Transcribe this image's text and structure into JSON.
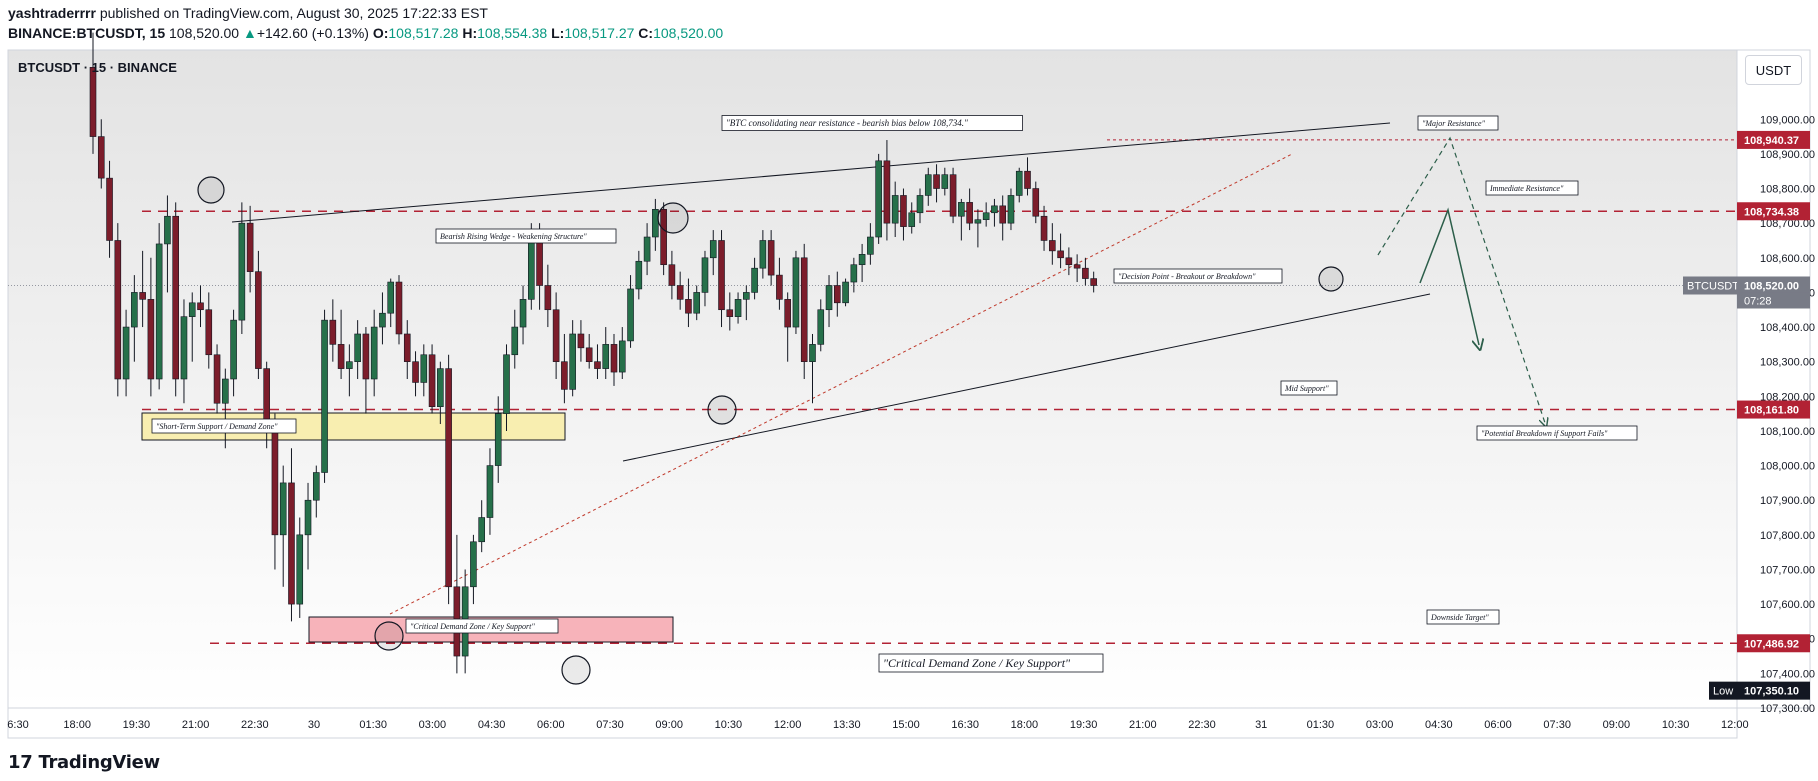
{
  "header": {
    "publisher": "yashtraderrrr",
    "published_text": "published on TradingView.com, August 30, 2025 17:22:33 EST",
    "symbol": "BINANCE:BTCUSDT, 15",
    "price": "108,520.00",
    "change": "+142.60 (+0.13%)",
    "o_label": "O:",
    "o_value": "108,517.28",
    "h_label": "H:",
    "h_value": "108,554.38",
    "l_label": "L:",
    "l_value": "108,517.27",
    "c_label": "C:",
    "c_value": "108,520.00"
  },
  "chart_title": "BTCUSDT · 15 · BINANCE",
  "currency_button": "USDT",
  "footer": {
    "logo_mark": "17",
    "logo_text": "TradingView"
  },
  "colors": {
    "bull": "#26704a",
    "bear": "#7c1d2b",
    "resistance": "#b22234",
    "yellow_zone": "#f8eeb0",
    "pink_zone": "#f7b3ba"
  },
  "chart_data": {
    "type": "candlestick",
    "symbol": "BTCUSDT",
    "interval": "15",
    "ylim": [
      107300,
      109200
    ],
    "y_ticks": [
      107300,
      107400,
      107500,
      107600,
      107700,
      107800,
      107900,
      108000,
      108100,
      108200,
      108300,
      108400,
      108500,
      108600,
      108700,
      108800,
      108900,
      109000
    ],
    "y_tick_labels": [
      "107,300.00",
      "107,400.00",
      "107,500.00",
      "107,600.00",
      "107,700.00",
      "107,800.00",
      "107,900.00",
      "108,000.00",
      "108,100.00",
      "108,200.00",
      "108,300.00",
      "108,400.00",
      "108,500.00",
      "108,600.00",
      "108,700.00",
      "108,800.00",
      "108,900.00",
      "109,000.00"
    ],
    "x_ticks": [
      "6:30",
      "18:00",
      "19:30",
      "21:00",
      "22:30",
      "30",
      "01:30",
      "03:00",
      "04:30",
      "06:00",
      "07:30",
      "09:00",
      "10:30",
      "12:00",
      "13:30",
      "15:00",
      "16:30",
      "18:00",
      "19:30",
      "21:00",
      "22:30",
      "31",
      "01:30",
      "03:00",
      "04:30",
      "06:00",
      "07:30",
      "09:00",
      "10:30",
      "12:00"
    ],
    "price_labels": [
      {
        "text": "108,940.37",
        "value": 108940.37,
        "color": "#b22234"
      },
      {
        "text": "108,734.38",
        "value": 108734.38,
        "color": "#b22234"
      },
      {
        "text": "BTCUSDT",
        "value": 108520,
        "color": "#787b86"
      },
      {
        "text": "108,520.00",
        "value": 108520,
        "color": "#787b86"
      },
      {
        "text": "07:28",
        "value": 108520,
        "color": "#787b86"
      },
      {
        "text": "108,161.80",
        "value": 108161.8,
        "color": "#b22234"
      },
      {
        "text": "107,486.92",
        "value": 107486.92,
        "color": "#b22234"
      },
      {
        "text": "Low",
        "value": 107350.1,
        "color": "#131722"
      },
      {
        "text": "107,350.10",
        "value": 107350.1,
        "color": "#131722"
      }
    ],
    "levels": [
      {
        "name": "Major Resistance",
        "value": 108940.37,
        "style": "dotted"
      },
      {
        "name": "Immediate Resistance",
        "value": 108734.38,
        "style": "dashed"
      },
      {
        "name": "Mid Support",
        "value": 108161.8,
        "style": "dashed"
      },
      {
        "name": "Downside Target",
        "value": 107486.92,
        "style": "dashed"
      }
    ],
    "annotations": [
      "\"BTC consolidating near resistance - bearish bias below 108,734.\"",
      "Bearish Rising Wedge - Weakening Structure\"",
      "\"Decision Point - Breakout or Breakdown\"",
      "\"Major Resistance\"",
      "Immediate Resistance\"",
      "Mid Support\"",
      "\"Potential Breakdown if Support Fails\"",
      "Downside Target\"",
      "\"Short-Term Support / Demand Zone\"",
      "\"Critical Demand Zone / Key Support\"",
      "\"Critical Demand Zone / Key Support\""
    ],
    "candles": [
      [
        109150,
        109250,
        108900,
        108950
      ],
      [
        108950,
        109000,
        108800,
        108830
      ],
      [
        108830,
        108880,
        108600,
        108650
      ],
      [
        108650,
        108700,
        108200,
        108250
      ],
      [
        108250,
        108450,
        108200,
        108400
      ],
      [
        108400,
        108550,
        108300,
        108500
      ],
      [
        108500,
        108620,
        108400,
        108480
      ],
      [
        108480,
        108600,
        108200,
        108250
      ],
      [
        108250,
        108700,
        108220,
        108640
      ],
      [
        108640,
        108780,
        108500,
        108720
      ],
      [
        108720,
        108760,
        108200,
        108250
      ],
      [
        108250,
        108480,
        108180,
        108430
      ],
      [
        108430,
        108500,
        108300,
        108470
      ],
      [
        108470,
        108520,
        108400,
        108450
      ],
      [
        108450,
        108500,
        108280,
        108320
      ],
      [
        108320,
        108350,
        108150,
        108180
      ],
      [
        108180,
        108280,
        108050,
        108250
      ],
      [
        108250,
        108450,
        108200,
        108420
      ],
      [
        108420,
        108760,
        108380,
        108700
      ],
      [
        108700,
        108750,
        108500,
        108560
      ],
      [
        108560,
        108620,
        108250,
        108280
      ],
      [
        108280,
        108300,
        108050,
        108100
      ],
      [
        108100,
        108150,
        107700,
        107800
      ],
      [
        107800,
        108000,
        107650,
        107950
      ],
      [
        107950,
        108050,
        107550,
        107600
      ],
      [
        107600,
        107850,
        107560,
        107800
      ],
      [
        107800,
        107950,
        107700,
        107900
      ],
      [
        107900,
        108000,
        107850,
        107980
      ],
      [
        107980,
        108450,
        107950,
        108420
      ],
      [
        108420,
        108480,
        108300,
        108350
      ],
      [
        108350,
        108450,
        108250,
        108280
      ],
      [
        108280,
        108350,
        108200,
        108300
      ],
      [
        108300,
        108420,
        108250,
        108380
      ],
      [
        108380,
        108400,
        108150,
        108250
      ],
      [
        108250,
        108450,
        108200,
        108400
      ],
      [
        108400,
        108500,
        108350,
        108440
      ],
      [
        108440,
        108540,
        108400,
        108530
      ],
      [
        108530,
        108550,
        108350,
        108380
      ],
      [
        108380,
        108420,
        108250,
        108300
      ],
      [
        108300,
        108330,
        108200,
        108240
      ],
      [
        108240,
        108350,
        108200,
        108320
      ],
      [
        108320,
        108350,
        108150,
        108170
      ],
      [
        108170,
        108300,
        108120,
        108280
      ],
      [
        108280,
        108320,
        107600,
        107650
      ],
      [
        107650,
        107800,
        107400,
        107450
      ],
      [
        107450,
        107700,
        107400,
        107650
      ],
      [
        107650,
        107800,
        107600,
        107780
      ],
      [
        107780,
        107900,
        107750,
        107850
      ],
      [
        107850,
        108050,
        107800,
        108000
      ],
      [
        108000,
        108200,
        107950,
        108150
      ],
      [
        108150,
        108350,
        108100,
        108320
      ],
      [
        108320,
        108450,
        108280,
        108400
      ],
      [
        108400,
        108520,
        108350,
        108480
      ],
      [
        108480,
        108700,
        108450,
        108670
      ],
      [
        108670,
        108700,
        108450,
        108520
      ],
      [
        108520,
        108580,
        108400,
        108450
      ],
      [
        108450,
        108500,
        108250,
        108300
      ],
      [
        108300,
        108380,
        108180,
        108220
      ],
      [
        108220,
        108420,
        108200,
        108380
      ],
      [
        108380,
        108420,
        108300,
        108340
      ],
      [
        108340,
        108380,
        108280,
        108300
      ],
      [
        108300,
        108350,
        108250,
        108280
      ],
      [
        108280,
        108400,
        108250,
        108350
      ],
      [
        108350,
        108380,
        108230,
        108270
      ],
      [
        108270,
        108400,
        108250,
        108360
      ],
      [
        108360,
        108550,
        108340,
        108510
      ],
      [
        108510,
        108620,
        108480,
        108590
      ],
      [
        108590,
        108700,
        108550,
        108660
      ],
      [
        108660,
        108770,
        108620,
        108740
      ],
      [
        108740,
        108760,
        108550,
        108580
      ],
      [
        108580,
        108620,
        108480,
        108520
      ],
      [
        108520,
        108560,
        108450,
        108480
      ],
      [
        108480,
        108540,
        108400,
        108440
      ],
      [
        108440,
        108520,
        108420,
        108500
      ],
      [
        108500,
        108620,
        108460,
        108600
      ],
      [
        108600,
        108680,
        108550,
        108650
      ],
      [
        108650,
        108680,
        108400,
        108450
      ],
      [
        108450,
        108500,
        108390,
        108430
      ],
      [
        108430,
        108500,
        108410,
        108480
      ],
      [
        108480,
        108520,
        108420,
        108500
      ],
      [
        108500,
        108600,
        108480,
        108570
      ],
      [
        108570,
        108680,
        108540,
        108650
      ],
      [
        108650,
        108680,
        108520,
        108550
      ],
      [
        108550,
        108600,
        108450,
        108480
      ],
      [
        108480,
        108500,
        108300,
        108400
      ],
      [
        108400,
        108620,
        108380,
        108600
      ],
      [
        108600,
        108640,
        108250,
        108300
      ],
      [
        108300,
        108380,
        108180,
        108350
      ],
      [
        108350,
        108480,
        108330,
        108450
      ],
      [
        108450,
        108550,
        108400,
        108520
      ],
      [
        108520,
        108560,
        108430,
        108470
      ],
      [
        108470,
        108540,
        108460,
        108530
      ],
      [
        108530,
        108600,
        108500,
        108580
      ],
      [
        108580,
        108640,
        108530,
        108610
      ],
      [
        108610,
        108700,
        108580,
        108660
      ],
      [
        108660,
        108900,
        108640,
        108880
      ],
      [
        108880,
        108940,
        108650,
        108700
      ],
      [
        108700,
        108820,
        108660,
        108780
      ],
      [
        108780,
        108800,
        108650,
        108690
      ],
      [
        108690,
        108760,
        108670,
        108730
      ],
      [
        108730,
        108800,
        108700,
        108780
      ],
      [
        108780,
        108860,
        108750,
        108840
      ],
      [
        108840,
        108870,
        108760,
        108800
      ],
      [
        108800,
        108860,
        108780,
        108840
      ],
      [
        108840,
        108860,
        108700,
        108720
      ],
      [
        108720,
        108770,
        108650,
        108760
      ],
      [
        108760,
        108800,
        108680,
        108700
      ],
      [
        108700,
        108740,
        108630,
        108710
      ],
      [
        108710,
        108760,
        108690,
        108730
      ],
      [
        108730,
        108770,
        108690,
        108750
      ],
      [
        108750,
        108780,
        108650,
        108700
      ],
      [
        108700,
        108800,
        108680,
        108780
      ],
      [
        108780,
        108860,
        108760,
        108850
      ],
      [
        108850,
        108890,
        108780,
        108800
      ],
      [
        108800,
        108820,
        108700,
        108720
      ],
      [
        108720,
        108750,
        108620,
        108650
      ],
      [
        108650,
        108700,
        108580,
        108620
      ],
      [
        108620,
        108670,
        108570,
        108600
      ],
      [
        108600,
        108630,
        108550,
        108580
      ],
      [
        108580,
        108610,
        108530,
        108570
      ],
      [
        108570,
        108600,
        108520,
        108540
      ],
      [
        108540,
        108560,
        108500,
        108520
      ]
    ],
    "candle_x_start": 93,
    "candle_x_step": 8.27
  }
}
